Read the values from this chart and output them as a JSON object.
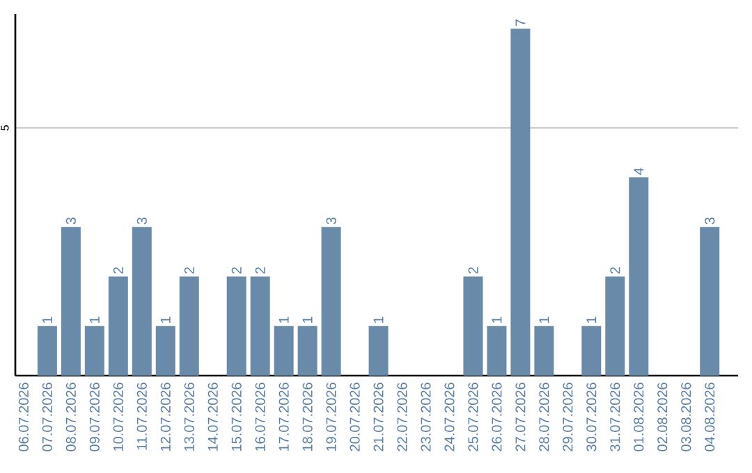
{
  "chart_data": {
    "type": "bar",
    "categories": [
      "06.07.2026",
      "07.07.2026",
      "08.07.2026",
      "09.07.2026",
      "10.07.2026",
      "11.07.2026",
      "12.07.2026",
      "13.07.2026",
      "14.07.2026",
      "15.07.2026",
      "16.07.2026",
      "17.07.2026",
      "18.07.2026",
      "19.07.2026",
      "20.07.2026",
      "21.07.2026",
      "22.07.2026",
      "23.07.2026",
      "24.07.2026",
      "25.07.2026",
      "26.07.2026",
      "27.07.2026",
      "28.07.2026",
      "29.07.2026",
      "30.07.2026",
      "31.07.2026",
      "01.08.2026",
      "02.08.2026",
      "03.08.2026",
      "04.08.2026"
    ],
    "values": [
      0,
      1,
      3,
      1,
      2,
      3,
      1,
      2,
      0,
      2,
      2,
      1,
      1,
      3,
      0,
      1,
      0,
      0,
      0,
      2,
      1,
      7,
      1,
      0,
      1,
      2,
      4,
      0,
      0,
      3
    ],
    "value_labels": [
      null,
      "1",
      "3",
      "1",
      "2",
      "3",
      "1",
      "2",
      null,
      "2",
      "2",
      "1",
      "1",
      "3",
      null,
      "1",
      null,
      null,
      null,
      "2",
      "1",
      "7",
      "1",
      null,
      "1",
      "2",
      "4",
      null,
      null,
      "3"
    ],
    "color": "#6a8aaa",
    "ylim": [
      0,
      7.3
    ],
    "yticks": [
      5
    ],
    "grid": "y"
  }
}
